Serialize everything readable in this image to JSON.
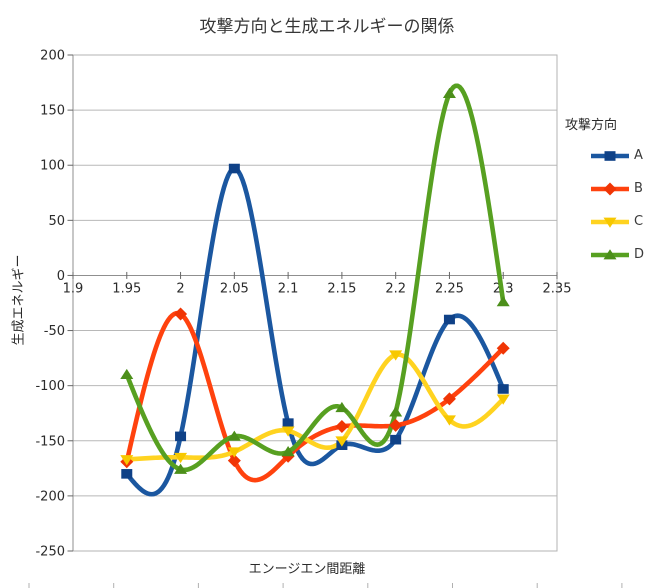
{
  "figure": {
    "background": "#ffffff",
    "colors": {
      "grid": "#b8b8b8",
      "border": "#b3b3b3",
      "axis": "#8f8f8f",
      "tick": "#666666",
      "tick_text": "#2b2b2b",
      "title_text": "#373737",
      "ruler_tick": "#b0b0b0"
    }
  },
  "chart_data": {
    "type": "line",
    "interpolation": "cubic_spline",
    "title": "攻撃方向と生成エネルギーの関係",
    "xlabel": "エンージエン間距離",
    "ylabel": "生成エネルギー",
    "legend": {
      "title": "攻撃方向",
      "position": "right",
      "entries": [
        "A",
        "B",
        "C",
        "D"
      ]
    },
    "xlim": [
      1.9,
      2.35
    ],
    "ylim": [
      -250,
      200
    ],
    "grid": "horizontal",
    "x_ticks": [
      "1.9",
      "1.95",
      "2",
      "2.05",
      "2.1",
      "2.15",
      "2.2",
      "2.25",
      "2.3",
      "2.35"
    ],
    "y_ticks": [
      200,
      150,
      100,
      50,
      0,
      -50,
      -100,
      -150,
      -200,
      -250
    ],
    "x": [
      1.95,
      2.0,
      2.05,
      2.1,
      2.15,
      2.2,
      2.25,
      2.3
    ],
    "series": [
      {
        "name": "A",
        "marker": "square",
        "line_color": "#1b57a0",
        "marker_color": "#0f4187",
        "values": [
          -180,
          -146,
          97,
          -134,
          -154,
          -149,
          -40,
          -103
        ]
      },
      {
        "name": "B",
        "marker": "diamond",
        "line_color": "#ff420e",
        "marker_color": "#f03505",
        "values": [
          -169,
          -35,
          -168,
          -164,
          -137,
          -136,
          -112,
          -66
        ]
      },
      {
        "name": "C",
        "marker": "triangle-down",
        "line_color": "#ffd320",
        "marker_color": "#f7c800",
        "values": [
          -167,
          -165,
          -160,
          -141,
          -150,
          -72,
          -131,
          -112
        ]
      },
      {
        "name": "D",
        "marker": "triangle-up",
        "line_color": "#57a021",
        "marker_color": "#4c8f1a",
        "values": [
          -90,
          -176,
          -146,
          -160,
          -120,
          -124,
          165,
          -24
        ]
      }
    ]
  }
}
